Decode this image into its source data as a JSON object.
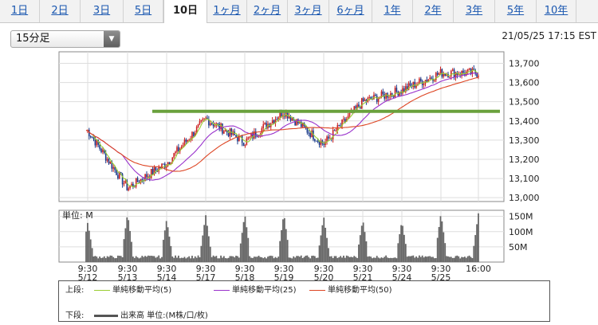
{
  "tabs": [
    {
      "label": "1日",
      "active": false
    },
    {
      "label": "2日",
      "active": false
    },
    {
      "label": "3日",
      "active": false
    },
    {
      "label": "5日",
      "active": false
    },
    {
      "label": "10日",
      "active": true
    },
    {
      "label": "1ヶ月",
      "active": false
    },
    {
      "label": "2ヶ月",
      "active": false
    },
    {
      "label": "3ヶ月",
      "active": false
    },
    {
      "label": "6ヶ月",
      "active": false
    },
    {
      "label": "1年",
      "active": false
    },
    {
      "label": "2年",
      "active": false
    },
    {
      "label": "3年",
      "active": false
    },
    {
      "label": "5年",
      "active": false
    },
    {
      "label": "10年",
      "active": false
    }
  ],
  "interval": {
    "selected": "15分足"
  },
  "timestamp": "21/05/25 17:15 EST",
  "legend": {
    "upper_label": "上段:",
    "lower_label": "下段:",
    "ma5_label": "単純移動平均(5)",
    "ma25_label": "単純移動平均(25)",
    "ma50_label": "単純移動平均(50)",
    "volume_label": "出来高 単位:(M株/口/枚)"
  },
  "colors": {
    "up": "#cc2222",
    "down": "#1a3a8a",
    "ma5": "#9acd32",
    "ma25": "#9932cc",
    "ma50": "#dd4422",
    "support": "#6aa13d",
    "volume": "#666666",
    "grid": "#dddddd",
    "frame": "#888888"
  },
  "chart_data": {
    "type": "candlestick",
    "x_ticks": [
      {
        "time": "9:30",
        "date": "5/12"
      },
      {
        "time": "9:30",
        "date": "5/13"
      },
      {
        "time": "9:30",
        "date": "5/14"
      },
      {
        "time": "9:30",
        "date": "5/17"
      },
      {
        "time": "9:30",
        "date": "5/18"
      },
      {
        "time": "9:30",
        "date": "5/19"
      },
      {
        "time": "9:30",
        "date": "5/20"
      },
      {
        "time": "9:30",
        "date": "5/21"
      },
      {
        "time": "9:30",
        "date": "5/24"
      },
      {
        "time": "9:30",
        "date": "5/25"
      },
      {
        "time": "16:00",
        "date": ""
      }
    ],
    "price": {
      "ylim": [
        12980,
        13760
      ],
      "y_ticks": [
        "13,000",
        "13,100",
        "13,200",
        "13,300",
        "13,400",
        "13,500",
        "13,600",
        "13,700"
      ],
      "y_tick_values": [
        13000,
        13100,
        13200,
        13300,
        13400,
        13500,
        13600,
        13700
      ],
      "support_level": 13450,
      "day_closes": [
        13350,
        13050,
        13180,
        13410,
        13290,
        13450,
        13280,
        13500,
        13560,
        13650,
        13650
      ],
      "grid": true
    },
    "volume": {
      "unit_label": "単位: M",
      "ylim": [
        0,
        170
      ],
      "y_ticks": [
        "150M",
        "100M",
        "50M"
      ],
      "y_tick_values": [
        150,
        100,
        50
      ],
      "day_open_spikes": [
        120,
        150,
        130,
        145,
        148,
        150,
        140,
        130,
        125,
        150,
        150
      ]
    }
  }
}
